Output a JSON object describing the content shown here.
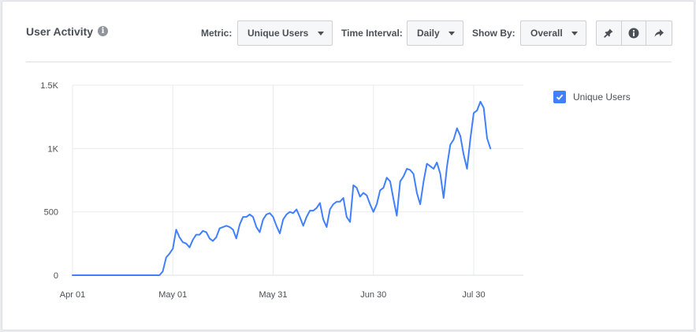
{
  "header": {
    "title": "User Activity",
    "info_glyph": "i",
    "metric_label": "Metric:",
    "metric_value": "Unique Users",
    "interval_label": "Time Interval:",
    "interval_value": "Daily",
    "showby_label": "Show By:",
    "showby_value": "Overall",
    "icons": [
      "pin-icon",
      "info-icon",
      "share-icon"
    ]
  },
  "colors": {
    "line": "#4080ff",
    "grid": "#e9ebee",
    "axis_text": "#4b4f56"
  },
  "chart_data": {
    "type": "line",
    "title": "",
    "xlabel": "",
    "ylabel": "",
    "ylim": [
      0,
      1500
    ],
    "y_ticks": [
      0,
      500,
      1000,
      1500
    ],
    "y_tick_labels": [
      "0",
      "500",
      "1K",
      "1.5K"
    ],
    "x_ticks": [
      "2016-04-01",
      "2016-05-01",
      "2016-05-31",
      "2016-06-30",
      "2016-07-30"
    ],
    "x_tick_labels": [
      "Apr 01",
      "May 01",
      "May 31",
      "Jun 30",
      "Jul 30"
    ],
    "xlim": [
      "2016-04-01",
      "2016-08-10"
    ],
    "grid": true,
    "legend": "right",
    "series": [
      {
        "name": "Unique Users",
        "x": [
          "2016-04-01",
          "2016-04-27",
          "2016-04-28",
          "2016-04-29",
          "2016-04-30",
          "2016-05-01",
          "2016-05-02",
          "2016-05-03",
          "2016-05-04",
          "2016-05-05",
          "2016-05-06",
          "2016-05-07",
          "2016-05-08",
          "2016-05-09",
          "2016-05-10",
          "2016-05-11",
          "2016-05-12",
          "2016-05-13",
          "2016-05-14",
          "2016-05-15",
          "2016-05-16",
          "2016-05-17",
          "2016-05-18",
          "2016-05-19",
          "2016-05-20",
          "2016-05-21",
          "2016-05-22",
          "2016-05-23",
          "2016-05-24",
          "2016-05-25",
          "2016-05-26",
          "2016-05-27",
          "2016-05-28",
          "2016-05-29",
          "2016-05-30",
          "2016-05-31",
          "2016-06-01",
          "2016-06-02",
          "2016-06-03",
          "2016-06-04",
          "2016-06-05",
          "2016-06-06",
          "2016-06-07",
          "2016-06-08",
          "2016-06-09",
          "2016-06-10",
          "2016-06-11",
          "2016-06-12",
          "2016-06-13",
          "2016-06-14",
          "2016-06-15",
          "2016-06-16",
          "2016-06-17",
          "2016-06-18",
          "2016-06-19",
          "2016-06-20",
          "2016-06-21",
          "2016-06-22",
          "2016-06-23",
          "2016-06-24",
          "2016-06-25",
          "2016-06-26",
          "2016-06-27",
          "2016-06-28",
          "2016-06-29",
          "2016-06-30",
          "2016-07-01",
          "2016-07-02",
          "2016-07-03",
          "2016-07-04",
          "2016-07-05",
          "2016-07-06",
          "2016-07-07",
          "2016-07-08",
          "2016-07-09",
          "2016-07-10",
          "2016-07-11",
          "2016-07-12",
          "2016-07-13",
          "2016-07-14",
          "2016-07-15",
          "2016-07-16",
          "2016-07-17",
          "2016-07-18",
          "2016-07-19",
          "2016-07-20",
          "2016-07-21",
          "2016-07-22",
          "2016-07-23",
          "2016-07-24",
          "2016-07-25",
          "2016-07-26",
          "2016-07-27",
          "2016-07-28",
          "2016-07-29",
          "2016-07-30",
          "2016-07-31",
          "2016-08-01",
          "2016-08-02",
          "2016-08-03",
          "2016-08-04"
        ],
        "y": [
          0,
          0,
          30,
          140,
          170,
          210,
          360,
          300,
          260,
          250,
          220,
          280,
          320,
          320,
          350,
          340,
          290,
          270,
          300,
          370,
          380,
          390,
          380,
          360,
          290,
          400,
          460,
          460,
          480,
          460,
          380,
          340,
          440,
          480,
          490,
          460,
          390,
          330,
          440,
          480,
          500,
          490,
          520,
          460,
          390,
          460,
          510,
          510,
          530,
          570,
          440,
          380,
          520,
          560,
          580,
          580,
          610,
          460,
          420,
          710,
          690,
          620,
          650,
          630,
          560,
          500,
          560,
          670,
          690,
          770,
          740,
          600,
          470,
          740,
          780,
          840,
          830,
          800,
          650,
          560,
          740,
          880,
          860,
          840,
          890,
          800,
          610,
          860,
          1030,
          1070,
          1160,
          1100,
          950,
          840,
          1080,
          1280,
          1300,
          1370,
          1320,
          1080,
          1000
        ]
      }
    ]
  }
}
